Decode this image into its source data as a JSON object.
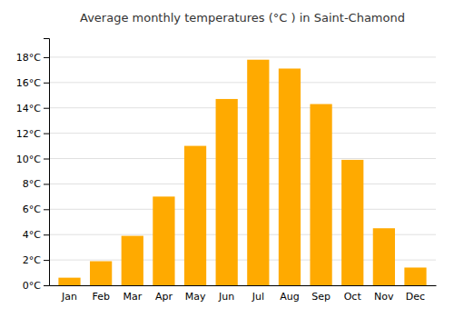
{
  "chart_data": {
    "type": "bar",
    "title": "Average monthly temperatures (°C ) in Saint-Chamond",
    "categories": [
      "Jan",
      "Feb",
      "Mar",
      "Apr",
      "May",
      "Jun",
      "Jul",
      "Aug",
      "Sep",
      "Oct",
      "Nov",
      "Dec"
    ],
    "values": [
      0.6,
      1.9,
      3.9,
      7.0,
      11.0,
      14.7,
      17.8,
      17.1,
      14.3,
      9.9,
      4.5,
      1.4
    ],
    "color": "#FFAA00",
    "ylim": [
      0,
      19.5
    ],
    "yticks": [
      {
        "value": 0,
        "label": "0°C"
      },
      {
        "value": 2,
        "label": "2°C"
      },
      {
        "value": 4,
        "label": "4°C"
      },
      {
        "value": 6,
        "label": "6°C"
      },
      {
        "value": 8,
        "label": "8°C"
      },
      {
        "value": 10,
        "label": "10°C"
      },
      {
        "value": 12,
        "label": "12°C"
      },
      {
        "value": 14,
        "label": "14°C"
      },
      {
        "value": 16,
        "label": "16°C"
      },
      {
        "value": 18,
        "label": "18°C"
      }
    ],
    "grid": true
  }
}
